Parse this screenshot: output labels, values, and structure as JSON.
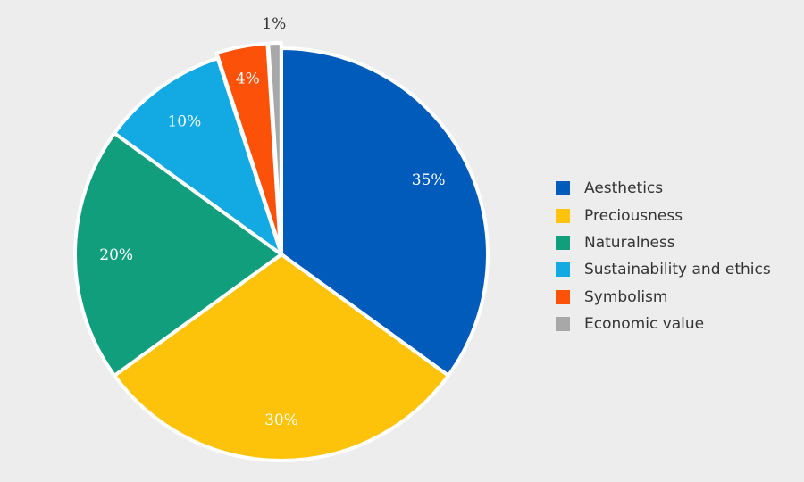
{
  "chart_data": {
    "type": "pie",
    "title": "",
    "start": "top, clockwise",
    "slices": [
      {
        "label": "Aesthetics",
        "value": 35,
        "text": "35%",
        "color": "#005bbb"
      },
      {
        "label": "Preciousness",
        "value": 30,
        "text": "30%",
        "color": "#fdc30a"
      },
      {
        "label": "Naturalness",
        "value": 20,
        "text": "20%",
        "color": "#119e7d"
      },
      {
        "label": "Sustainability and ethics",
        "value": 10,
        "text": "10%",
        "color": "#13a9e3"
      },
      {
        "label": "Symbolism",
        "value": 4,
        "text": "4%",
        "color": "#fb5108"
      },
      {
        "label": "Economic value",
        "value": 1,
        "text": "1%",
        "color": "#a8a8a8"
      }
    ],
    "legend_placement": "right"
  }
}
